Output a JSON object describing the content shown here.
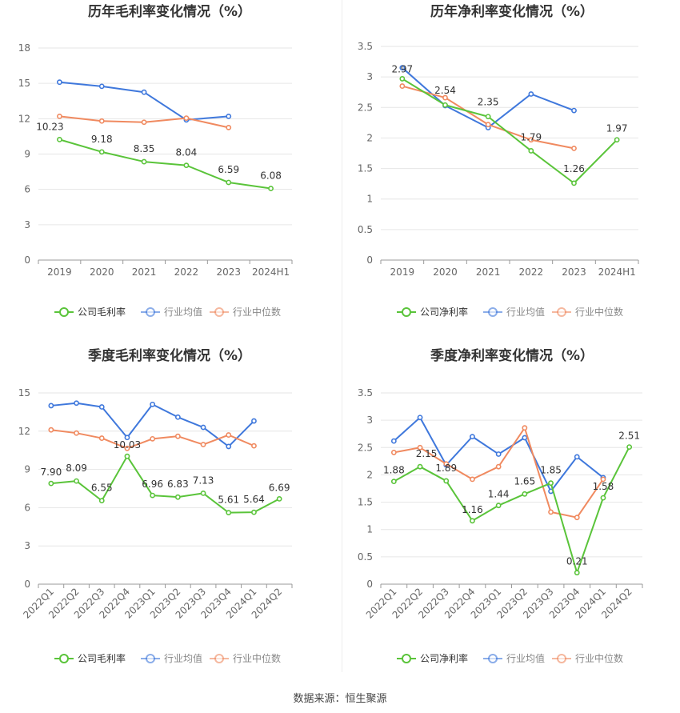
{
  "source_label": "数据来源：恒生聚源",
  "colors": {
    "company": "#5ac43a",
    "industry_avg": "#3f78dc",
    "industry_median": "#f08a60",
    "grid": "#e6e6e6",
    "axis": "#666666",
    "title": "#333333"
  },
  "chart_data": [
    {
      "type": "line",
      "title": "历年毛利率变化情况（%）",
      "categories": [
        "2019",
        "2020",
        "2021",
        "2022",
        "2023",
        "2024H1"
      ],
      "ylim": [
        0,
        18
      ],
      "yticks": [
        0,
        3,
        6,
        9,
        12,
        15,
        18
      ],
      "grid": true,
      "legend_position": "bottom",
      "series": [
        {
          "name": "公司毛利率",
          "color": "#5ac43a",
          "labels": true,
          "values": [
            10.23,
            9.18,
            8.35,
            8.04,
            6.59,
            6.08
          ]
        },
        {
          "name": "行业均值",
          "color": "#3f78dc",
          "labels": false,
          "values": [
            15.1,
            14.75,
            14.25,
            11.9,
            12.2,
            null
          ]
        },
        {
          "name": "行业中位数",
          "color": "#f08a60",
          "labels": false,
          "values": [
            12.2,
            11.8,
            11.7,
            12.05,
            11.25,
            null
          ]
        }
      ],
      "label_texts": [
        "10.23",
        "9.18",
        "8.35",
        "8.04",
        "6.59",
        "6.08"
      ]
    },
    {
      "type": "line",
      "title": "历年净利率变化情况（%）",
      "categories": [
        "2019",
        "2020",
        "2021",
        "2022",
        "2023",
        "2024H1"
      ],
      "ylim": [
        0,
        3.5
      ],
      "yticks": [
        0,
        0.5,
        1,
        1.5,
        2,
        2.5,
        3,
        3.5
      ],
      "grid": true,
      "legend_position": "bottom",
      "series": [
        {
          "name": "公司净利率",
          "color": "#5ac43a",
          "labels": true,
          "values": [
            2.97,
            2.54,
            2.35,
            1.79,
            1.26,
            1.97
          ]
        },
        {
          "name": "行业均值",
          "color": "#3f78dc",
          "labels": false,
          "values": [
            3.15,
            2.53,
            2.17,
            2.72,
            2.45,
            null
          ]
        },
        {
          "name": "行业中位数",
          "color": "#f08a60",
          "labels": false,
          "values": [
            2.85,
            2.66,
            2.22,
            1.97,
            1.83,
            null
          ]
        }
      ],
      "label_texts": [
        "2.97",
        "2.54",
        "2.35",
        "1.79",
        "1.26",
        "1.97"
      ]
    },
    {
      "type": "line",
      "title": "季度毛利率变化情况（%）",
      "categories": [
        "2022Q1",
        "2022Q2",
        "2022Q3",
        "2022Q4",
        "2023Q1",
        "2023Q2",
        "2023Q3",
        "2023Q4",
        "2024Q1",
        "2024Q2"
      ],
      "ylim": [
        0,
        15
      ],
      "yticks": [
        0,
        3,
        6,
        9,
        12,
        15
      ],
      "grid": true,
      "legend_position": "bottom",
      "series": [
        {
          "name": "公司毛利率",
          "color": "#5ac43a",
          "labels": true,
          "values": [
            7.9,
            8.09,
            6.55,
            10.03,
            6.96,
            6.83,
            7.13,
            5.61,
            5.64,
            6.69
          ]
        },
        {
          "name": "行业均值",
          "color": "#3f78dc",
          "labels": false,
          "values": [
            14.0,
            14.2,
            13.9,
            11.5,
            14.1,
            13.1,
            12.3,
            10.8,
            12.8,
            null
          ]
        },
        {
          "name": "行业中位数",
          "color": "#f08a60",
          "labels": false,
          "values": [
            12.1,
            11.85,
            11.45,
            10.65,
            11.4,
            11.6,
            10.95,
            11.7,
            10.85,
            null
          ]
        }
      ],
      "label_texts": [
        "7.90",
        "8.09",
        "6.55",
        "10.03",
        "6.96",
        "6.83",
        "7.13",
        "5.61",
        "5.64",
        "6.69"
      ]
    },
    {
      "type": "line",
      "title": "季度净利率变化情况（%）",
      "categories": [
        "2022Q1",
        "2022Q2",
        "2022Q3",
        "2022Q4",
        "2023Q1",
        "2023Q2",
        "2023Q3",
        "2023Q4",
        "2024Q1",
        "2024Q2"
      ],
      "ylim": [
        0,
        3.5
      ],
      "yticks": [
        0,
        0.5,
        1,
        1.5,
        2,
        2.5,
        3,
        3.5
      ],
      "grid": true,
      "legend_position": "bottom",
      "series": [
        {
          "name": "公司净利率",
          "color": "#5ac43a",
          "labels": true,
          "values": [
            1.88,
            2.15,
            1.89,
            1.16,
            1.44,
            1.65,
            1.85,
            0.21,
            1.58,
            2.51
          ]
        },
        {
          "name": "行业均值",
          "color": "#3f78dc",
          "labels": false,
          "values": [
            2.62,
            3.05,
            2.18,
            2.7,
            2.38,
            2.68,
            1.7,
            2.33,
            1.95,
            null
          ]
        },
        {
          "name": "行业中位数",
          "color": "#f08a60",
          "labels": false,
          "values": [
            2.41,
            2.5,
            2.2,
            1.92,
            2.15,
            2.86,
            1.32,
            1.22,
            1.92,
            null
          ]
        }
      ],
      "label_texts": [
        "1.88",
        "2.15",
        "1.89",
        "1.16",
        "1.44",
        "1.65",
        "1.85",
        "0.21",
        "1.58",
        "2.51"
      ]
    }
  ]
}
